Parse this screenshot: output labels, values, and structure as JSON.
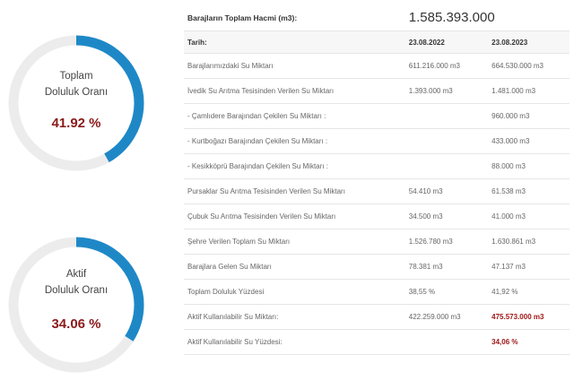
{
  "gauges": [
    {
      "label_line1": "Toplam",
      "label_line2": "Doluluk Oranı",
      "value": "41.92 %",
      "fraction": 0.4192,
      "color": "#1e88c7",
      "track": "#ececec"
    },
    {
      "label_line1": "Aktif",
      "label_line2": "Doluluk Oranı",
      "value": "34.06 %",
      "fraction": 0.3406,
      "color": "#1e88c7",
      "track": "#ececec"
    }
  ],
  "table": {
    "title": "Barajların Toplam Hacmi (m3):",
    "total": "1.585.393.000",
    "header": {
      "label": "Tarih:",
      "col1": "23.08.2022",
      "col2": "23.08.2023"
    },
    "rows": [
      {
        "label": "Barajlarımızdaki Su Miktarı",
        "v1": "611.216.000 m3",
        "v2": "664.530.000 m3"
      },
      {
        "label": "İvedik Su Arıtma Tesisinden Verilen Su Miktarı",
        "v1": "1.393.000 m3",
        "v2": "1.481.000 m3"
      },
      {
        "label": "- Çamlıdere Barajından Çekilen Su Miktarı :",
        "v1": "",
        "v2": "960.000 m3"
      },
      {
        "label": "- Kurtboğazı Barajından Çekilen Su Miktarı :",
        "v1": "",
        "v2": "433.000 m3"
      },
      {
        "label": "- Kesikköprü Barajından Çekilen Su Miktarı :",
        "v1": "",
        "v2": "88.000 m3"
      },
      {
        "label": "Pursaklar Su Arıtma Tesisinden Verilen Su Miktarı",
        "v1": "54.410 m3",
        "v2": "61.538 m3"
      },
      {
        "label": "Çubuk Su Arıtma Tesisinden Verilen Su Miktarı",
        "v1": "34.500 m3",
        "v2": "41.000 m3"
      },
      {
        "label": "Şehre Verilen Toplam Su Miktarı",
        "v1": "1.526.780 m3",
        "v2": "1.630.861 m3"
      },
      {
        "label": "Barajlara Gelen Su Miktarı",
        "v1": "78.381 m3",
        "v2": "47.137 m3"
      },
      {
        "label": "Toplam Doluluk Yüzdesi",
        "v1": "38,55 %",
        "v2": "41,92 %"
      },
      {
        "label": "Aktif Kullanılabilir Su Miktarı:",
        "v1": "422.259.000 m3",
        "v2": "475.573.000 m3",
        "v2_highlight": true
      },
      {
        "label": "Aktif Kullanılabilir Su Yüzdesi:",
        "v1": "",
        "v2": "34,06 %",
        "v2_highlight": true
      }
    ]
  }
}
